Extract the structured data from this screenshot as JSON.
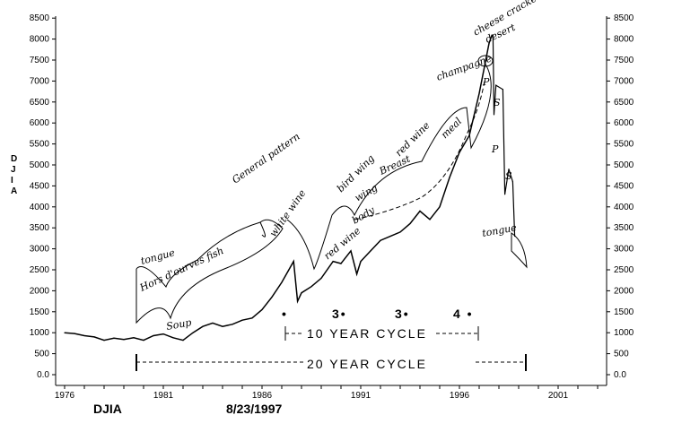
{
  "chart_data": {
    "type": "line",
    "title": "",
    "ylabel": "DJIA",
    "xlabel": "",
    "footer_left": "DJIA",
    "footer_date": "8/23/1997",
    "ylim": [
      0,
      8500
    ],
    "xlim": [
      1975.5,
      2003.5
    ],
    "y_ticks": [
      "0.0",
      "500",
      "1000",
      "1500",
      "2000",
      "2500",
      "3000",
      "3500",
      "4000",
      "4500",
      "5000",
      "5500",
      "6000",
      "6500",
      "7000",
      "7500",
      "8000",
      "8500"
    ],
    "x_ticks": [
      "1976",
      "1981",
      "1986",
      "1991",
      "1996",
      "2001"
    ],
    "grid": false,
    "series": [
      {
        "x": [
          1976,
          1976.5,
          1977,
          1977.5,
          1978,
          1978.5,
          1979,
          1979.5,
          1980,
          1980.5,
          1981,
          1981.5,
          1982,
          1982.5,
          1983,
          1983.5,
          1984,
          1984.5,
          1985,
          1985.5,
          1986,
          1986.5,
          1987,
          1987.6,
          1987.8,
          1988,
          1988.5,
          1989,
          1989.6,
          1990,
          1990.5,
          1990.8,
          1991,
          1991.5,
          1992,
          1992.5,
          1993,
          1993.5,
          1994,
          1994.5,
          1995,
          1995.5,
          1996,
          1996.5,
          1997,
          1997.5,
          1997.65
        ],
        "y": [
          1000,
          980,
          930,
          900,
          820,
          870,
          840,
          880,
          820,
          930,
          970,
          880,
          820,
          1000,
          1150,
          1230,
          1150,
          1200,
          1300,
          1350,
          1550,
          1850,
          2200,
          2700,
          1750,
          1950,
          2100,
          2300,
          2700,
          2650,
          2950,
          2400,
          2700,
          2950,
          3200,
          3300,
          3400,
          3600,
          3900,
          3700,
          4000,
          4700,
          5300,
          5700,
          6700,
          7900,
          8100
        ]
      },
      {
        "x": [
          1997.7,
          1997.75,
          1997.85,
          1998.2,
          1998.3,
          1998.5,
          1998.7,
          1998.8
        ],
        "y": [
          8100,
          6200,
          6900,
          6800,
          4300,
          4900,
          4600,
          3300
        ]
      }
    ],
    "annotations": {
      "general_pattern": "General pattern",
      "tongue_left": "tongue",
      "horse_dourves_fish": "Hors d'ourves fish",
      "soup": "Soup",
      "white_wine": "white wine",
      "red_wine": "red wine",
      "bird_wing": "bird wing",
      "body": "body",
      "breast": "Breast",
      "wing": "wing",
      "red_wine2": "red wine",
      "meal": "meal",
      "champagne": "champagne",
      "cheese_crackers": "cheese crackers",
      "dessert": "desert",
      "p1": "P",
      "s1": "S",
      "p2": "P",
      "s2": "S",
      "tongue_right": "tongue",
      "dot1": "•",
      "dot2": "3•",
      "dot3": "3•",
      "dot4": "4 •",
      "ten_year_cycle": "10 YEAR CYCLE",
      "twenty_year_cycle": "20 YEAR CYCLE"
    }
  }
}
